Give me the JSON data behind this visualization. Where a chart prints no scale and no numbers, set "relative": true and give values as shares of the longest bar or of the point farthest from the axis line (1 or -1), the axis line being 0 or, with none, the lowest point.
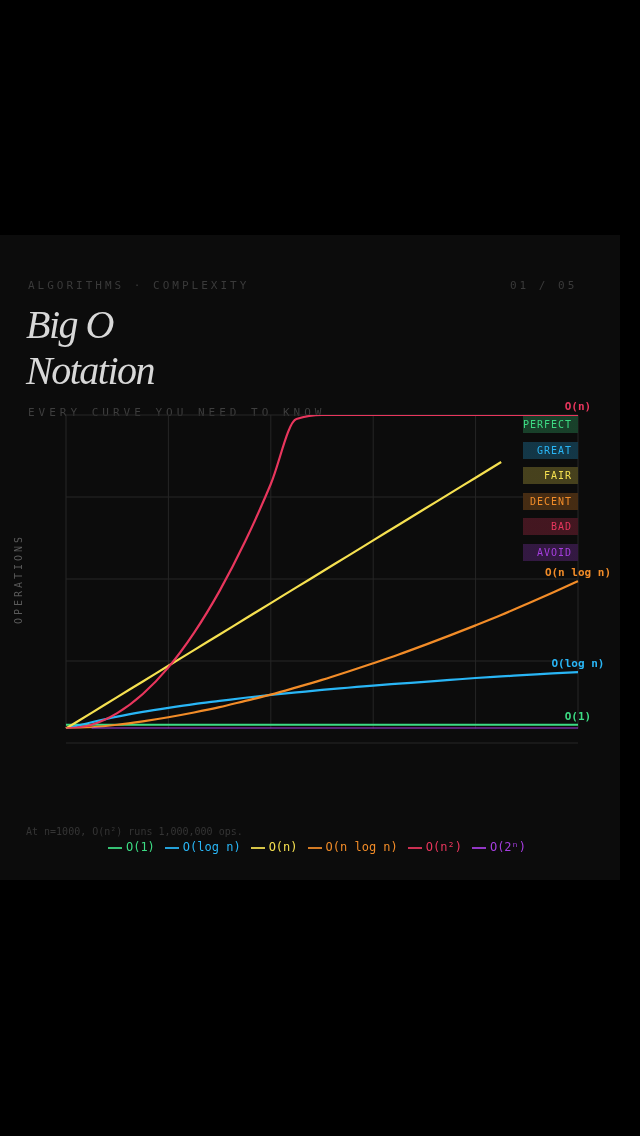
{
  "chart_data": {
    "type": "line",
    "title": "Big O Notation",
    "subtitle": "EVERY CURVE YOU NEED TO KNOW",
    "ylabel": "OPERATIONS",
    "relative": true,
    "grid": true,
    "legend": "bottom",
    "marker": "none",
    "line_style": "solid",
    "categories": [
      null,
      null,
      null,
      null,
      null,
      null,
      null,
      null,
      null,
      null,
      null,
      null,
      null,
      null,
      null,
      null,
      null,
      null,
      null,
      null,
      null
    ],
    "series": [
      {
        "name": "O(1)",
        "color": "#3ddc84",
        "values": [
          0.012,
          0.012,
          0.012,
          0.012,
          0.012,
          0.012,
          0.012,
          0.012,
          0.012,
          0.012,
          0.012,
          0.012,
          0.012,
          0.012,
          0.012,
          0.012,
          0.012,
          0.012,
          0.012,
          0.012,
          0.012
        ]
      },
      {
        "name": "O(log n)",
        "color": "#29b6f6",
        "values": [
          0,
          0.02,
          0.038,
          0.053,
          0.066,
          0.078,
          0.088,
          0.098,
          0.107,
          0.115,
          0.123,
          0.13,
          0.137,
          0.143,
          0.149,
          0.155,
          0.161,
          0.166,
          0.171,
          0.176,
          0.18
        ]
      },
      {
        "name": "O(n)",
        "color": "#f5e050",
        "values": [
          0,
          0.05,
          0.1,
          0.15,
          0.2,
          0.25,
          0.3,
          0.35,
          0.4,
          0.45,
          0.5,
          0.55,
          0.6,
          0.65,
          0.7,
          0.75,
          0.8,
          0.85,
          null,
          null,
          null
        ]
      },
      {
        "name": "O(n log n)",
        "color": "#f28c28",
        "values": [
          0,
          0.004,
          0.012,
          0.023,
          0.036,
          0.051,
          0.068,
          0.088,
          0.108,
          0.131,
          0.155,
          0.181,
          0.208,
          0.236,
          0.266,
          0.297,
          0.329,
          0.362,
          0.397,
          0.433,
          0.47
        ]
      },
      {
        "name": "O(n²)",
        "color": "#e8365d",
        "values": [
          0,
          0.012,
          0.049,
          0.11,
          0.195,
          0.305,
          0.439,
          0.597,
          0.78,
          0.987,
          1,
          1,
          1,
          1,
          1,
          1,
          1,
          1,
          1,
          1,
          1
        ]
      },
      {
        "name": "O(2ⁿ)",
        "color": "#a63ee0",
        "values": [
          null,
          0,
          0,
          0,
          0,
          0,
          0,
          0,
          0,
          0,
          0,
          0,
          0,
          0,
          0,
          0,
          0,
          0,
          0,
          0,
          0
        ]
      }
    ],
    "annotations": [
      "ALGORITHMS · COMPLEXITY",
      "01 / 05",
      "PERFECT",
      "GREAT",
      "FAIR",
      "DECENT",
      "BAD",
      "AVOID",
      "At n=1000, O(n²) runs 1,000,000 ops.",
      {
        "text": "O(n)",
        "y": 1
      },
      {
        "text": "O(n log n)",
        "y": 0.47
      },
      {
        "text": "O(log n)",
        "y": 0.18
      },
      {
        "text": "O(1)",
        "y": 0.012
      }
    ]
  }
}
